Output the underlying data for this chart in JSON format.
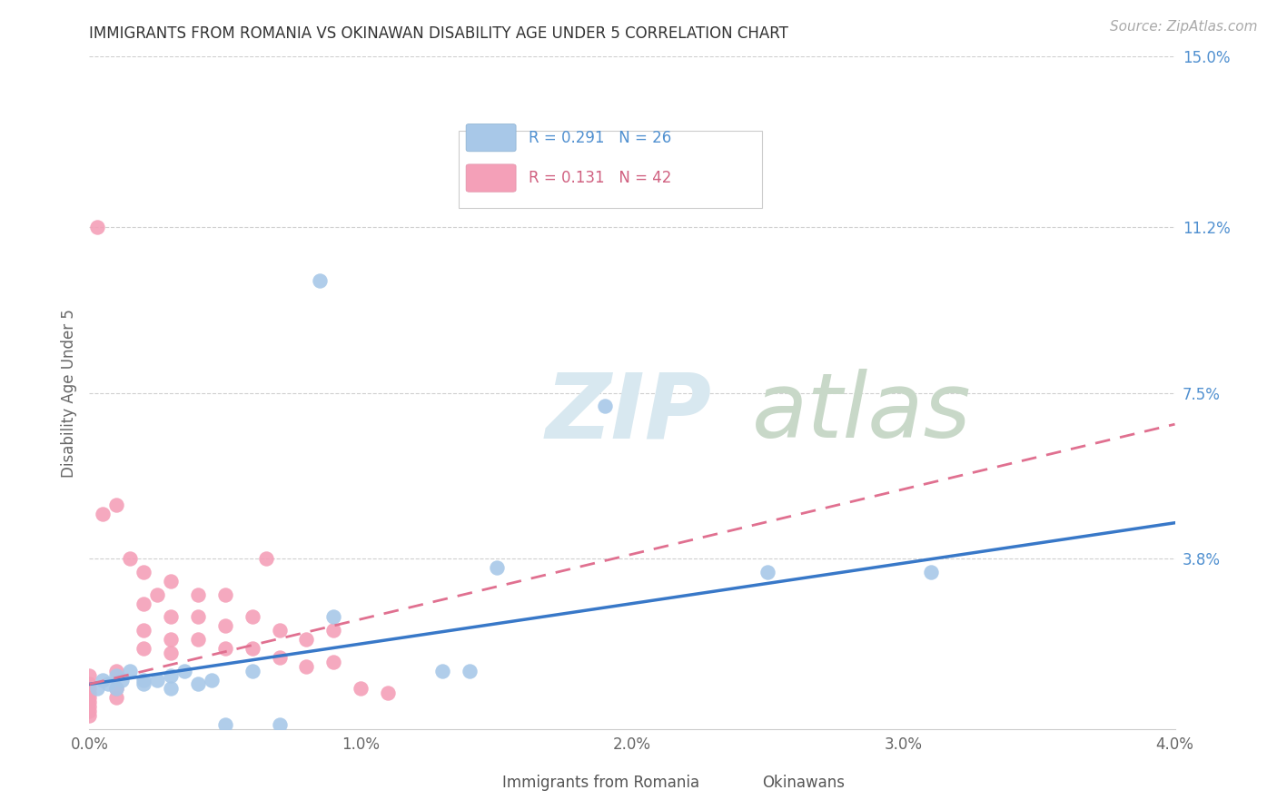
{
  "title": "IMMIGRANTS FROM ROMANIA VS OKINAWAN DISABILITY AGE UNDER 5 CORRELATION CHART",
  "source": "Source: ZipAtlas.com",
  "ylabel": "Disability Age Under 5",
  "xlim": [
    0.0,
    0.04
  ],
  "ylim": [
    0.0,
    0.15
  ],
  "xticks": [
    0.0,
    0.01,
    0.02,
    0.03,
    0.04
  ],
  "xticklabels": [
    "0.0%",
    "1.0%",
    "2.0%",
    "3.0%",
    "4.0%"
  ],
  "yticks_right": [
    0.038,
    0.075,
    0.112,
    0.15
  ],
  "yticks_right_labels": [
    "3.8%",
    "7.5%",
    "11.2%",
    "15.0%"
  ],
  "legend_blue_R": "0.291",
  "legend_blue_N": "26",
  "legend_pink_R": "0.131",
  "legend_pink_N": "42",
  "blue_color": "#a8c8e8",
  "pink_color": "#f4a0b8",
  "trend_blue_color": "#3878c8",
  "trend_pink_color": "#e07090",
  "grid_color": "#d0d0d0",
  "blue_scatter_x": [
    0.0003,
    0.0005,
    0.0007,
    0.001,
    0.001,
    0.0012,
    0.0015,
    0.002,
    0.002,
    0.0025,
    0.003,
    0.003,
    0.0035,
    0.004,
    0.0045,
    0.005,
    0.006,
    0.007,
    0.0085,
    0.009,
    0.013,
    0.015,
    0.019,
    0.025,
    0.031,
    0.014
  ],
  "blue_scatter_y": [
    0.009,
    0.011,
    0.01,
    0.009,
    0.012,
    0.011,
    0.013,
    0.01,
    0.011,
    0.011,
    0.009,
    0.012,
    0.013,
    0.01,
    0.011,
    0.001,
    0.013,
    0.001,
    0.1,
    0.025,
    0.013,
    0.036,
    0.072,
    0.035,
    0.035,
    0.013
  ],
  "pink_scatter_x": [
    0.0,
    0.0,
    0.0,
    0.0,
    0.0,
    0.0,
    0.0,
    0.0,
    0.0,
    0.0003,
    0.0005,
    0.001,
    0.001,
    0.001,
    0.001,
    0.0015,
    0.002,
    0.002,
    0.002,
    0.002,
    0.0025,
    0.003,
    0.003,
    0.003,
    0.003,
    0.004,
    0.004,
    0.004,
    0.005,
    0.005,
    0.005,
    0.006,
    0.006,
    0.0065,
    0.007,
    0.007,
    0.008,
    0.008,
    0.009,
    0.009,
    0.01,
    0.011
  ],
  "pink_scatter_y": [
    0.012,
    0.01,
    0.009,
    0.008,
    0.007,
    0.006,
    0.005,
    0.004,
    0.003,
    0.112,
    0.048,
    0.013,
    0.05,
    0.009,
    0.007,
    0.038,
    0.035,
    0.028,
    0.022,
    0.018,
    0.03,
    0.033,
    0.025,
    0.02,
    0.017,
    0.03,
    0.025,
    0.02,
    0.03,
    0.023,
    0.018,
    0.025,
    0.018,
    0.038,
    0.022,
    0.016,
    0.02,
    0.014,
    0.022,
    0.015,
    0.009,
    0.008
  ],
  "trend_blue_x0": 0.0,
  "trend_blue_y0": 0.01,
  "trend_blue_x1": 0.04,
  "trend_blue_y1": 0.046,
  "trend_pink_x0": 0.0,
  "trend_pink_y0": 0.01,
  "trend_pink_x1": 0.04,
  "trend_pink_y1": 0.068,
  "figsize": [
    14.06,
    8.92
  ],
  "dpi": 100
}
